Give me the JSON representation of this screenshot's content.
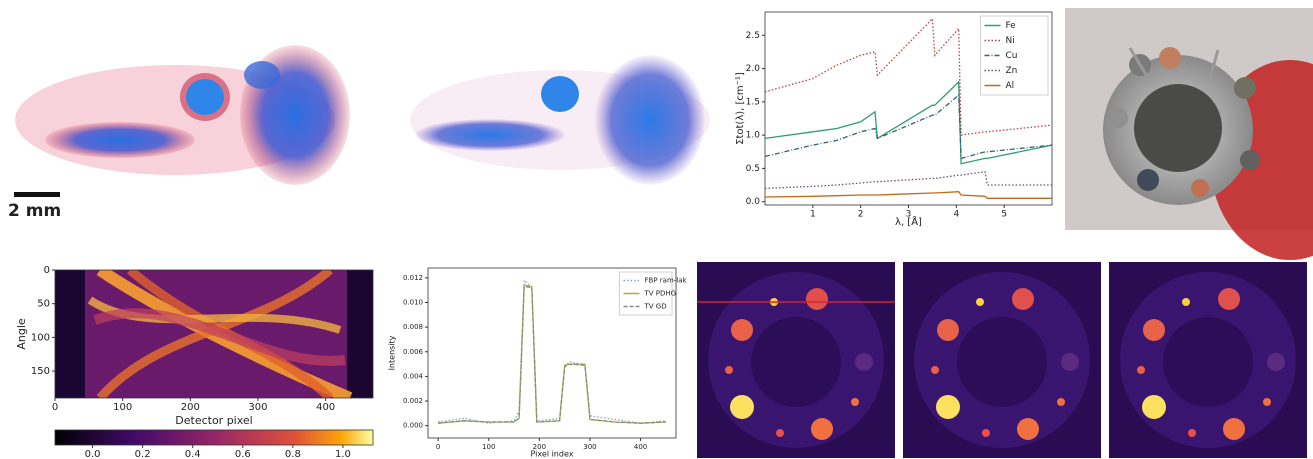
{
  "scale_bar": "2 mm",
  "chart_data": [
    {
      "type": "line",
      "xlabel": "λ, [Å]",
      "ylabel": "Σtot(λ), [cm⁻¹]",
      "x": [
        0,
        1,
        1.5,
        2,
        2.3,
        2.35,
        3.5,
        3.55,
        4.05,
        4.1,
        4.6,
        4.65,
        6
      ],
      "xlim": [
        0,
        6
      ],
      "ylim": [
        -0.05,
        2.85
      ],
      "xticks": [
        1,
        2,
        3,
        4,
        5
      ],
      "yticks": [
        {
          "value": 0,
          "label": "0.0"
        },
        0.5,
        {
          "value": 1,
          "label": "1.0"
        },
        1.5,
        {
          "value": 2,
          "label": "2.0"
        },
        2.5
      ],
      "legend": "upper right",
      "series": [
        {
          "name": "Fe",
          "color": "#2e9e6e",
          "style": "solid",
          "values": [
            0.95,
            1.05,
            1.1,
            1.2,
            1.35,
            0.95,
            1.45,
            1.45,
            1.8,
            0.57,
            0.65,
            0.65,
            0.85
          ]
        },
        {
          "name": "Ni",
          "color": "#b5433c",
          "style": "dotted",
          "values": [
            1.65,
            1.85,
            2.05,
            2.2,
            2.25,
            1.9,
            2.75,
            2.2,
            2.6,
            1.0,
            1.05,
            1.05,
            1.15
          ]
        },
        {
          "name": "Cu",
          "color": "#3a5f6f",
          "style": "dashdot",
          "values": [
            0.68,
            0.85,
            0.92,
            1.05,
            1.1,
            0.95,
            1.3,
            1.3,
            1.6,
            0.65,
            0.75,
            0.75,
            0.85
          ]
        },
        {
          "name": "Zn",
          "color": "#7a4a6a",
          "style": "dotted",
          "values": [
            0.2,
            0.23,
            0.25,
            0.28,
            0.3,
            0.3,
            0.35,
            0.35,
            0.4,
            0.4,
            0.45,
            0.25,
            0.25
          ]
        },
        {
          "name": "Al",
          "color": "#c06a1a",
          "style": "solid",
          "values": [
            0.07,
            0.08,
            0.09,
            0.1,
            0.1,
            0.1,
            0.13,
            0.13,
            0.15,
            0.1,
            0.08,
            0.05,
            0.05
          ]
        }
      ]
    },
    {
      "type": "heatmap",
      "xlabel": "Detector pixel",
      "ylabel": "Angle",
      "xlim": [
        0,
        470
      ],
      "ylim": [
        190,
        0
      ],
      "xticks": [
        0,
        100,
        200,
        300,
        400
      ],
      "yticks": [
        0,
        50,
        100,
        150
      ],
      "colormap": "inferno",
      "colorbar": {
        "lim": [
          -0.15,
          1.12
        ],
        "ticks": [
          {
            "value": 0,
            "label": "0.0"
          },
          {
            "value": 0.2,
            "label": "0.2"
          },
          {
            "value": 0.4,
            "label": "0.4"
          },
          {
            "value": 0.6,
            "label": "0.6"
          },
          {
            "value": 0.8,
            "label": "0.8"
          },
          {
            "value": 1,
            "label": "1.0"
          }
        ]
      }
    },
    {
      "type": "line",
      "xlabel": "Pixel index",
      "ylabel": "Intensity",
      "x": [
        0,
        50,
        100,
        150,
        160,
        170,
        185,
        195,
        240,
        250,
        260,
        290,
        300,
        350,
        400,
        450
      ],
      "xlim": [
        -20,
        470
      ],
      "ylim": [
        -0.001,
        0.0128
      ],
      "xticks": [
        0,
        100,
        200,
        300,
        400
      ],
      "yticks": [
        {
          "value": 0,
          "label": "0.000"
        },
        {
          "value": 0.002,
          "label": "0.002"
        },
        {
          "value": 0.004,
          "label": "0.004"
        },
        {
          "value": 0.006,
          "label": "0.006"
        },
        {
          "value": 0.008,
          "label": "0.008"
        },
        {
          "value": 0.01,
          "label": "0.010"
        },
        {
          "value": 0.012,
          "label": "0.012"
        }
      ],
      "legend": "upper right",
      "series": [
        {
          "name": "FBP ram-lak",
          "color": "#7fa8c8",
          "style": "dotted",
          "values": [
            0.0003,
            0.0006,
            0.0002,
            0.0004,
            0.0012,
            0.0118,
            0.0112,
            0.0004,
            0.0006,
            0.0048,
            0.0052,
            0.0049,
            0.0008,
            0.0005,
            0.0002,
            0.0004
          ]
        },
        {
          "name": "TV PDHG",
          "color": "#a8b230",
          "style": "solid",
          "values": [
            0.0002,
            0.0004,
            0.0003,
            0.0003,
            0.0006,
            0.0114,
            0.0113,
            0.0003,
            0.0004,
            0.0049,
            0.005,
            0.005,
            0.0005,
            0.0003,
            0.0002,
            0.0003
          ]
        },
        {
          "name": "TV GD",
          "color": "#888888",
          "style": "dashed",
          "values": [
            0.0002,
            0.0004,
            0.0003,
            0.0003,
            0.0006,
            0.0113,
            0.0112,
            0.0003,
            0.0004,
            0.0048,
            0.005,
            0.0049,
            0.0005,
            0.0003,
            0.0002,
            0.0003
          ]
        }
      ]
    }
  ]
}
